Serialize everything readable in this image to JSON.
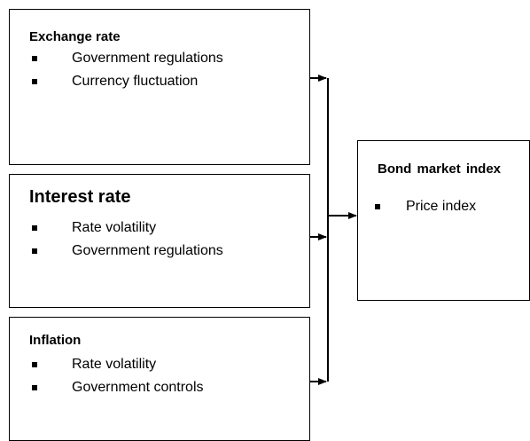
{
  "nodes": [
    {
      "title": "Exchange rate",
      "items": [
        "Government regulations",
        "Currency fluctuation"
      ]
    },
    {
      "title": "Interest rate",
      "items": [
        "Rate volatility",
        "Government regulations"
      ]
    },
    {
      "title": "Inflation",
      "items": [
        "Rate volatility",
        "Government controls"
      ]
    },
    {
      "title": "Bond market index",
      "items": [
        "Price index"
      ]
    }
  ]
}
